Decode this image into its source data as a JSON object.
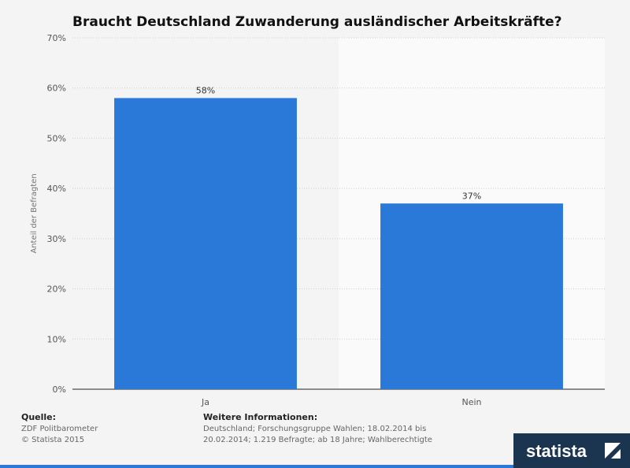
{
  "chart_data": {
    "type": "bar",
    "title": "Braucht Deutschland Zuwanderung ausländischer Arbeitskräfte?",
    "ylabel": "Anteil der Befragten",
    "categories": [
      "Ja",
      "Nein"
    ],
    "values": [
      58,
      37
    ],
    "value_labels": [
      "58%",
      "37%"
    ],
    "ylim": [
      0,
      70
    ],
    "yticks": [
      0,
      10,
      20,
      30,
      40,
      50,
      60,
      70
    ],
    "ytick_labels": [
      "0%",
      "10%",
      "20%",
      "30%",
      "40%",
      "50%",
      "60%",
      "70%"
    ],
    "grid": true,
    "bar_color": "#2a78d8"
  },
  "footer": {
    "source_header": "Quelle:",
    "source_lines": [
      "ZDF Politbarometer",
      "© Statista 2015"
    ],
    "info_header": "Weitere Informationen:",
    "info_lines": [
      "Deutschland; Forschungsgruppe Wahlen; 18.02.2014 bis",
      "20.02.2014; 1.219 Befragte; ab 18 Jahre; Wahlberechtigte"
    ]
  },
  "brand": {
    "name": "statista",
    "color": "#1b3551"
  }
}
